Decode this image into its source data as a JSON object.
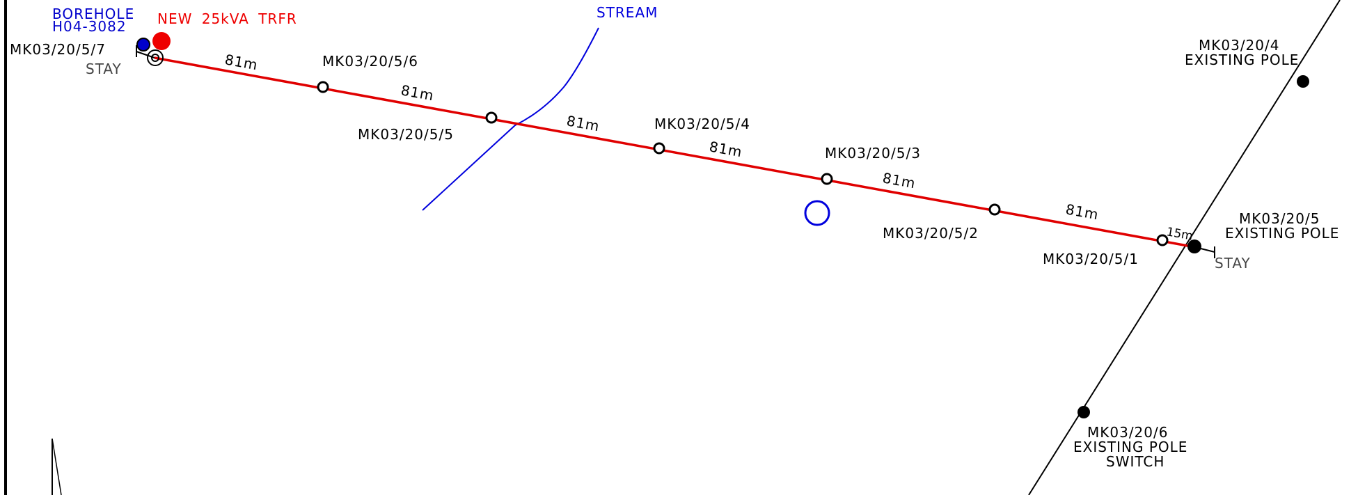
{
  "colors": {
    "line": "#e00000",
    "existing_line": "#000000",
    "stream": "#0000dd",
    "borehole": "#0000cc",
    "transformer": "#ee0000",
    "label": "#000000",
    "stay_label": "#444444"
  },
  "labels": {
    "borehole_1": "BOREHOLE",
    "borehole_2": "H04-3082",
    "transformer": "NEW 25kVA TRFR",
    "stream": "STREAM",
    "stay_left": "STAY",
    "stay_right": "STAY"
  },
  "poles": {
    "p7": "MK03/20/5/7",
    "p6": "MK03/20/5/6",
    "p5": "MK03/20/5/5",
    "p4": "MK03/20/5/4",
    "p3": "MK03/20/5/3",
    "p2": "MK03/20/5/2",
    "p1": "MK03/20/5/1",
    "e4_1": "MK03/20/4",
    "e4_2": "EXISTING POLE",
    "e5_1": "MK03/20/5",
    "e5_2": "EXISTING POLE",
    "e6_1": "MK03/20/6",
    "e6_2": "EXISTING POLE",
    "e6_3": "SWITCH"
  },
  "spans": {
    "s1": "81m",
    "s2": "81m",
    "s3": "81m",
    "s4": "81m",
    "s5": "81m",
    "s6": "81m",
    "s7": "15m"
  }
}
